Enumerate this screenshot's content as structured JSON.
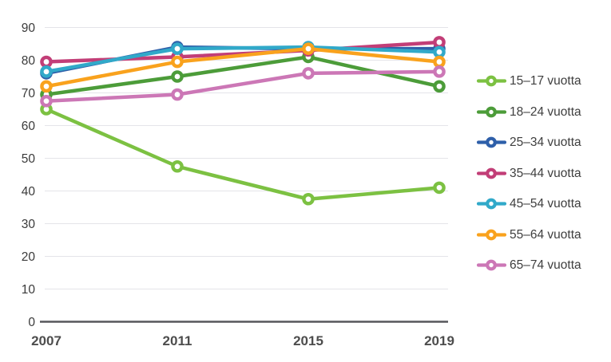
{
  "chart_data": {
    "type": "line",
    "title": "",
    "xlabel": "",
    "ylabel": "",
    "x": [
      "2007",
      "2011",
      "2015",
      "2019"
    ],
    "series": [
      {
        "name": "15–17 vuotta",
        "color": "#7CC142",
        "values": [
          65,
          47.5,
          37.5,
          41
        ]
      },
      {
        "name": "18–24 vuotta",
        "color": "#4C9C39",
        "values": [
          69.5,
          75,
          81,
          72
        ]
      },
      {
        "name": "25–34 vuotta",
        "color": "#2E5FA9",
        "values": [
          76,
          84,
          83.5,
          83.5
        ]
      },
      {
        "name": "35–44 vuotta",
        "color": "#C23E77",
        "values": [
          79.5,
          81,
          83,
          85.5
        ]
      },
      {
        "name": "45–54 vuotta",
        "color": "#31A9C9",
        "values": [
          76.5,
          83.5,
          84,
          82.5
        ]
      },
      {
        "name": "55–64 vuotta",
        "color": "#F9A21D",
        "values": [
          72,
          79.5,
          83.5,
          79.5
        ]
      },
      {
        "name": "65–74 vuotta",
        "color": "#CC77B6",
        "values": [
          67.5,
          69.5,
          76,
          76.5
        ]
      }
    ],
    "ylim": [
      0,
      90
    ],
    "ytick_step": 10,
    "grid": true,
    "legend_position": "right",
    "marker": "open-circle"
  },
  "colors": {
    "background": "#FFFFFF",
    "gridline": "#E4E4E9",
    "axis_line": "#56575B",
    "y_tick_label": "#3A3A3A",
    "x_tick_label": "#4D4D4D",
    "legend_text": "#3E3E3E"
  }
}
